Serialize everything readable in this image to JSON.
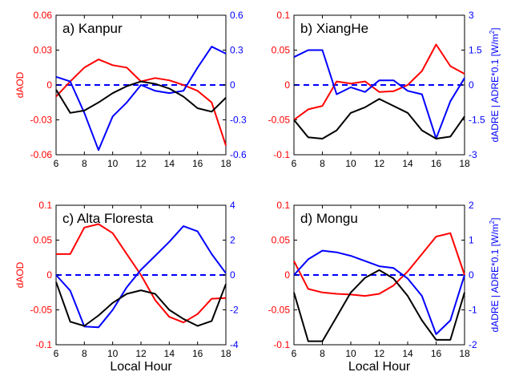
{
  "figure": {
    "xlabel": "Local Hour",
    "left_ylabel": "dAOD",
    "right_ylabel_parts": [
      "dADRE | ADRE*0.1 [W/m",
      "2",
      "]"
    ],
    "colors": {
      "daod": "#ff0000",
      "dadre": "#0000ff",
      "adre": "#000000",
      "zero": "#0000ff",
      "axis": "#000000"
    }
  },
  "chart_data": [
    {
      "type": "line",
      "title": "a)  Kanpur",
      "x": [
        6,
        7,
        8,
        9,
        10,
        11,
        12,
        13,
        14,
        15,
        16,
        17,
        18
      ],
      "xticks": [
        6,
        8,
        10,
        12,
        14,
        16,
        18
      ],
      "ylim_left": [
        -0.06,
        0.06
      ],
      "yticks_left": [
        -0.06,
        -0.03,
        0,
        0.03,
        0.06
      ],
      "ytick_labels_left": [
        "-0.06",
        "-0.03",
        "0",
        "0.03",
        "0.06"
      ],
      "ylim_right": [
        -0.6,
        0.6
      ],
      "yticks_right": [
        -0.6,
        -0.3,
        0,
        0.3,
        0.6
      ],
      "ytick_labels_right": [
        "-0.6",
        "-0.3",
        "0",
        "0.3",
        "0.6"
      ],
      "show_left_label": true,
      "show_right_label": false,
      "show_xlabel": false,
      "series": [
        {
          "axis": "left",
          "color": "#ff0000",
          "values": [
            -0.01,
            0.003,
            0.015,
            0.022,
            0.017,
            0.015,
            0.003,
            0.006,
            0.004,
            0.0,
            -0.005,
            -0.015,
            -0.052
          ]
        },
        {
          "axis": "right",
          "color": "#0000ff",
          "values": [
            0.07,
            0.03,
            -0.24,
            -0.56,
            -0.27,
            -0.15,
            0.0,
            -0.05,
            -0.07,
            -0.05,
            0.15,
            0.33,
            0.27
          ]
        },
        {
          "axis": "left",
          "color": "#000000",
          "values": [
            -0.004,
            -0.024,
            -0.022,
            -0.015,
            -0.007,
            -0.001,
            0.003,
            0.001,
            -0.003,
            -0.01,
            -0.02,
            -0.023,
            -0.011
          ]
        }
      ]
    },
    {
      "type": "line",
      "title": "b)  XiangHe",
      "x": [
        6,
        7,
        8,
        9,
        10,
        11,
        12,
        13,
        14,
        15,
        16,
        17,
        18
      ],
      "xticks": [
        6,
        8,
        10,
        12,
        14,
        16,
        18
      ],
      "ylim_left": [
        -0.1,
        0.1
      ],
      "yticks_left": [
        -0.1,
        -0.05,
        0,
        0.05,
        0.1
      ],
      "ytick_labels_left": [
        "-0.1",
        "-0.05",
        "0",
        "0.05",
        "0.1"
      ],
      "ylim_right": [
        -3,
        3
      ],
      "yticks_right": [
        -3,
        -1.5,
        0,
        1.5,
        3
      ],
      "ytick_labels_right": [
        "-3",
        "-1.5",
        "0",
        "1.5",
        "3"
      ],
      "show_left_label": false,
      "show_right_label": true,
      "show_xlabel": false,
      "series": [
        {
          "axis": "left",
          "color": "#ff0000",
          "values": [
            -0.05,
            -0.035,
            -0.03,
            0.005,
            0.002,
            0.005,
            -0.01,
            -0.009,
            0.0,
            0.02,
            0.058,
            0.027,
            0.016
          ]
        },
        {
          "axis": "right",
          "color": "#0000ff",
          "values": [
            1.2,
            1.5,
            1.5,
            -0.4,
            -0.1,
            -0.3,
            0.2,
            0.2,
            -0.25,
            -0.4,
            -2.3,
            -0.7,
            0.3
          ]
        },
        {
          "axis": "left",
          "color": "#000000",
          "values": [
            -0.05,
            -0.075,
            -0.077,
            -0.065,
            -0.04,
            -0.032,
            -0.02,
            -0.03,
            -0.04,
            -0.065,
            -0.077,
            -0.074,
            -0.045
          ]
        }
      ]
    },
    {
      "type": "line",
      "title": "c)  Alta Floresta",
      "x": [
        6,
        7,
        8,
        9,
        10,
        11,
        12,
        13,
        14,
        15,
        16,
        17,
        18
      ],
      "xticks": [
        6,
        8,
        10,
        12,
        14,
        16,
        18
      ],
      "ylim_left": [
        -0.1,
        0.1
      ],
      "yticks_left": [
        -0.1,
        -0.05,
        0,
        0.05,
        0.1
      ],
      "ytick_labels_left": [
        "-0.1",
        "-0.05",
        "0",
        "0.05",
        "0.1"
      ],
      "ylim_right": [
        -4,
        4
      ],
      "yticks_right": [
        -4,
        -2,
        0,
        2,
        4
      ],
      "ytick_labels_right": [
        "-4",
        "-2",
        "0",
        "2",
        "4"
      ],
      "show_left_label": true,
      "show_right_label": false,
      "show_xlabel": true,
      "series": [
        {
          "axis": "left",
          "color": "#ff0000",
          "values": [
            0.03,
            0.03,
            0.068,
            0.073,
            0.06,
            0.03,
            0.0,
            -0.036,
            -0.06,
            -0.068,
            -0.056,
            -0.034,
            -0.033
          ]
        },
        {
          "axis": "right",
          "color": "#0000ff",
          "values": [
            0.0,
            -0.9,
            -2.95,
            -3.0,
            -2.0,
            -0.7,
            0.3,
            1.1,
            1.9,
            2.8,
            2.5,
            1.2,
            0.1
          ]
        },
        {
          "axis": "left",
          "color": "#000000",
          "values": [
            -0.01,
            -0.067,
            -0.073,
            -0.058,
            -0.04,
            -0.027,
            -0.022,
            -0.027,
            -0.05,
            -0.063,
            -0.073,
            -0.066,
            -0.013
          ]
        }
      ]
    },
    {
      "type": "line",
      "title": "d)  Mongu",
      "x": [
        6,
        7,
        8,
        9,
        10,
        11,
        12,
        13,
        14,
        15,
        16,
        17,
        18
      ],
      "xticks": [
        6,
        8,
        10,
        12,
        14,
        16,
        18
      ],
      "ylim_left": [
        -0.1,
        0.1
      ],
      "yticks_left": [
        -0.1,
        -0.05,
        0,
        0.05,
        0.1
      ],
      "ytick_labels_left": [
        "-0.1",
        "-0.05",
        "0",
        "0.05",
        "0.1"
      ],
      "ylim_right": [
        -2,
        2
      ],
      "yticks_right": [
        -2,
        -1,
        0,
        1,
        2
      ],
      "ytick_labels_right": [
        "-2",
        "-1",
        "0",
        "1",
        "2"
      ],
      "show_left_label": false,
      "show_right_label": true,
      "show_xlabel": true,
      "series": [
        {
          "axis": "left",
          "color": "#ff0000",
          "values": [
            0.02,
            -0.02,
            -0.025,
            -0.027,
            -0.028,
            -0.03,
            -0.027,
            -0.015,
            0.005,
            0.03,
            0.055,
            0.06,
            0.0
          ]
        },
        {
          "axis": "right",
          "color": "#0000ff",
          "values": [
            0.0,
            0.45,
            0.7,
            0.65,
            0.55,
            0.4,
            0.25,
            0.2,
            -0.1,
            -0.6,
            -1.7,
            -1.3,
            0.0
          ]
        },
        {
          "axis": "left",
          "color": "#000000",
          "values": [
            -0.025,
            -0.095,
            -0.095,
            -0.06,
            -0.025,
            -0.004,
            0.007,
            -0.005,
            -0.03,
            -0.065,
            -0.093,
            -0.093,
            -0.025
          ]
        }
      ]
    }
  ]
}
